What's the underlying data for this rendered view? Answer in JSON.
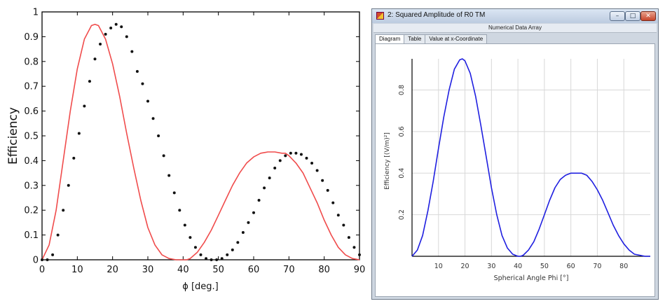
{
  "left_chart": {
    "axes": {
      "ylabel": "Efficiency",
      "xlabel": "ϕ [deg.]",
      "xlim": [
        0,
        90
      ],
      "ylim": [
        0,
        1
      ],
      "xticks": [
        "0",
        "10",
        "20",
        "30",
        "40",
        "50",
        "60",
        "70",
        "80",
        "90"
      ],
      "yticks": [
        "0",
        "0.1",
        "0.2",
        "0.3",
        "0.4",
        "0.5",
        "0.6",
        "0.7",
        "0.8",
        "0.9",
        "1"
      ]
    },
    "line_color": "#f04c4c",
    "dot_color": "#111111"
  },
  "window": {
    "title": "2: Squared Amplitude of R0 TM",
    "subheader": "Numerical Data Array",
    "tabs": [
      "Diagram",
      "Table",
      "Value at x-Coordinate"
    ],
    "active_tab": "Diagram",
    "controls": {
      "minimize": "–",
      "maximize": "□",
      "close": "✕"
    },
    "axes": {
      "ylabel": "Efficiency [(V/m)²]",
      "xlabel": "Spherical Angle Phi [°]",
      "xticks": [
        "10",
        "20",
        "30",
        "40",
        "50",
        "60",
        "70",
        "80"
      ],
      "yticks": [
        "0.2",
        "0.4",
        "0.6",
        "0.8"
      ]
    },
    "line_color": "#1f1fe0"
  },
  "chart_data": [
    {
      "type": "line",
      "xlabel": "ϕ [deg.]",
      "ylabel": "Efficiency",
      "xlim": [
        0,
        90
      ],
      "ylim": [
        0,
        1
      ],
      "grid": false,
      "series": [
        {
          "style": "line",
          "color": "#f04c4c",
          "x": [
            0,
            2,
            4,
            6,
            8,
            10,
            12,
            14,
            15,
            16,
            18,
            20,
            22,
            24,
            26,
            28,
            30,
            32,
            34,
            36,
            38,
            40,
            41,
            42,
            44,
            46,
            48,
            50,
            52,
            54,
            56,
            58,
            60,
            62,
            64,
            66,
            68,
            69,
            70,
            72,
            74,
            76,
            78,
            80,
            82,
            84,
            86,
            88,
            90
          ],
          "y": [
            0.0,
            0.06,
            0.2,
            0.4,
            0.6,
            0.77,
            0.89,
            0.945,
            0.95,
            0.945,
            0.89,
            0.79,
            0.66,
            0.51,
            0.37,
            0.24,
            0.13,
            0.06,
            0.02,
            0.005,
            0.0,
            0.0,
            0.0,
            0.005,
            0.03,
            0.07,
            0.12,
            0.18,
            0.24,
            0.3,
            0.35,
            0.39,
            0.415,
            0.43,
            0.435,
            0.435,
            0.43,
            0.43,
            0.42,
            0.39,
            0.35,
            0.29,
            0.23,
            0.16,
            0.1,
            0.05,
            0.02,
            0.005,
            0.0
          ]
        },
        {
          "style": "markers",
          "color": "#111111",
          "x": [
            0,
            1.5,
            3,
            4.5,
            6,
            7.5,
            9,
            10.5,
            12,
            13.5,
            15,
            16.5,
            18,
            19.5,
            21,
            22.5,
            24,
            25.5,
            27,
            28.5,
            30,
            31.5,
            33,
            34.5,
            36,
            37.5,
            39,
            40.5,
            42,
            43.5,
            45,
            46.5,
            48,
            49.5,
            51,
            52.5,
            54,
            55.5,
            57,
            58.5,
            60,
            61.5,
            63,
            64.5,
            66,
            67.5,
            69,
            70.5,
            72,
            73.5,
            75,
            76.5,
            78,
            79.5,
            81,
            82.5,
            84,
            85.5,
            87,
            88.5,
            90
          ],
          "y": [
            0.0,
            0.0,
            0.02,
            0.1,
            0.2,
            0.3,
            0.41,
            0.51,
            0.62,
            0.72,
            0.81,
            0.87,
            0.91,
            0.935,
            0.95,
            0.94,
            0.9,
            0.84,
            0.76,
            0.71,
            0.64,
            0.57,
            0.5,
            0.42,
            0.34,
            0.27,
            0.2,
            0.14,
            0.09,
            0.05,
            0.02,
            0.005,
            0.0,
            0.0,
            0.005,
            0.02,
            0.04,
            0.07,
            0.11,
            0.15,
            0.19,
            0.24,
            0.29,
            0.33,
            0.37,
            0.4,
            0.42,
            0.43,
            0.43,
            0.425,
            0.41,
            0.39,
            0.36,
            0.32,
            0.28,
            0.23,
            0.18,
            0.14,
            0.09,
            0.05,
            0.02
          ]
        }
      ]
    },
    {
      "type": "line",
      "title": "2: Squared Amplitude of R0 TM",
      "xlabel": "Spherical Angle Phi [°]",
      "ylabel": "Efficiency [(V/m)²]",
      "xlim": [
        0,
        90
      ],
      "ylim": [
        0,
        0.95
      ],
      "grid": true,
      "series": [
        {
          "color": "#1f1fe0",
          "x": [
            0,
            2,
            4,
            6,
            8,
            10,
            12,
            14,
            16,
            18,
            19,
            20,
            22,
            24,
            26,
            28,
            30,
            32,
            34,
            36,
            38,
            40,
            41,
            42,
            44,
            46,
            48,
            50,
            52,
            54,
            56,
            58,
            60,
            62,
            64,
            66,
            68,
            70,
            72,
            74,
            76,
            78,
            80,
            82,
            84,
            86,
            88,
            90
          ],
          "y": [
            0.0,
            0.03,
            0.1,
            0.22,
            0.36,
            0.52,
            0.67,
            0.8,
            0.9,
            0.945,
            0.95,
            0.94,
            0.88,
            0.77,
            0.63,
            0.48,
            0.33,
            0.2,
            0.1,
            0.04,
            0.01,
            0.0,
            0.0,
            0.005,
            0.03,
            0.07,
            0.13,
            0.2,
            0.27,
            0.33,
            0.37,
            0.39,
            0.4,
            0.4,
            0.4,
            0.39,
            0.36,
            0.32,
            0.27,
            0.21,
            0.15,
            0.1,
            0.06,
            0.03,
            0.01,
            0.005,
            0.0,
            0.0
          ]
        }
      ]
    }
  ]
}
